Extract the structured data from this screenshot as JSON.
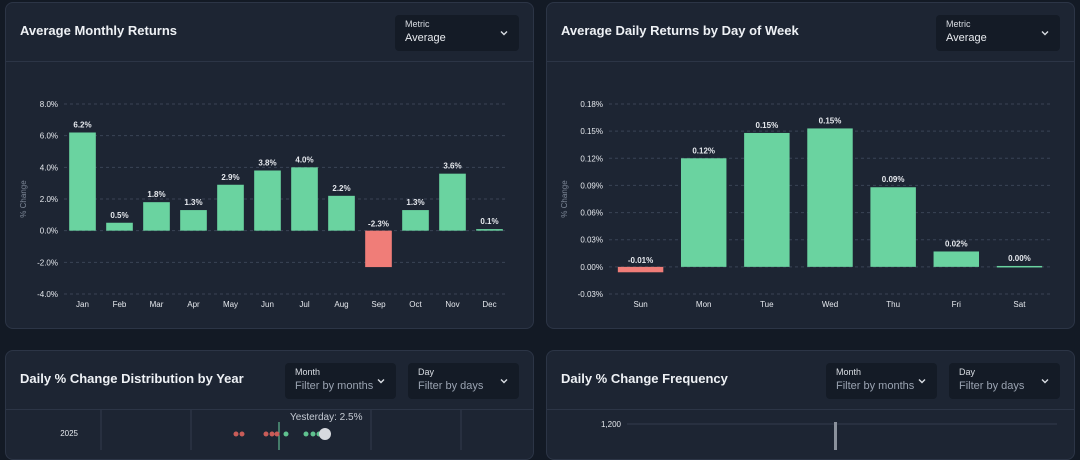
{
  "cards": {
    "monthly": {
      "title": "Average Monthly Returns",
      "metric": {
        "label": "Metric",
        "value": "Average"
      }
    },
    "daily": {
      "title": "Average Daily Returns by Day of Week",
      "metric": {
        "label": "Metric",
        "value": "Average"
      }
    },
    "distribution": {
      "title": "Daily % Change Distribution by Year",
      "month_filter": {
        "label": "Month",
        "placeholder": "Filter by months"
      },
      "day_filter": {
        "label": "Day",
        "placeholder": "Filter by days"
      },
      "annotation": "Yesterday: 2.5%",
      "year_label": "2025"
    },
    "frequency": {
      "title": "Daily % Change Frequency",
      "month_filter": {
        "label": "Month",
        "placeholder": "Filter by months"
      },
      "day_filter": {
        "label": "Day",
        "placeholder": "Filter by days"
      },
      "y_tick": "1,200"
    }
  },
  "colors": {
    "positive": "#6ad3a0",
    "negative": "#f07d78",
    "grid": "#3a4456",
    "text": "#e6e9ee",
    "axis_label": "#7d8797"
  },
  "chart_data": [
    {
      "type": "bar",
      "title": "Average Monthly Returns",
      "ylabel": "% Change",
      "categories": [
        "Jan",
        "Feb",
        "Mar",
        "Apr",
        "May",
        "Jun",
        "Jul",
        "Aug",
        "Sep",
        "Oct",
        "Nov",
        "Dec"
      ],
      "values": [
        6.2,
        0.5,
        1.8,
        1.3,
        2.9,
        3.8,
        4.0,
        2.2,
        -2.3,
        1.3,
        3.6,
        0.1
      ],
      "data_labels": [
        "6.2%",
        "0.5%",
        "1.8%",
        "1.3%",
        "2.9%",
        "3.8%",
        "4.0%",
        "2.2%",
        "-2.3%",
        "1.3%",
        "3.6%",
        "0.1%"
      ],
      "yticks": [
        -4.0,
        -2.0,
        0.0,
        2.0,
        4.0,
        6.0,
        8.0
      ],
      "ytick_labels": [
        "-4.0%",
        "-2.0%",
        "0.0%",
        "2.0%",
        "4.0%",
        "6.0%",
        "8.0%"
      ],
      "ylim": [
        -4.0,
        8.0
      ],
      "grid": true
    },
    {
      "type": "bar",
      "title": "Average Daily Returns by Day of Week",
      "ylabel": "% Change",
      "categories": [
        "Sun",
        "Mon",
        "Tue",
        "Wed",
        "Thu",
        "Fri",
        "Sat"
      ],
      "values": [
        -0.01,
        0.12,
        0.15,
        0.15,
        0.09,
        0.02,
        0.0
      ],
      "data_labels": [
        "-0.01%",
        "0.12%",
        "0.15%",
        "0.15%",
        "0.09%",
        "0.02%",
        "0.00%"
      ],
      "precise_values": [
        -0.006,
        0.12,
        0.148,
        0.153,
        0.088,
        0.017,
        0.001
      ],
      "yticks": [
        -0.03,
        0.0,
        0.03,
        0.06,
        0.09,
        0.12,
        0.15,
        0.18
      ],
      "ytick_labels": [
        "-0.03%",
        "0.00%",
        "0.03%",
        "0.06%",
        "0.09%",
        "0.12%",
        "0.15%",
        "0.18%"
      ],
      "ylim": [
        -0.03,
        0.18
      ],
      "grid": true
    }
  ]
}
